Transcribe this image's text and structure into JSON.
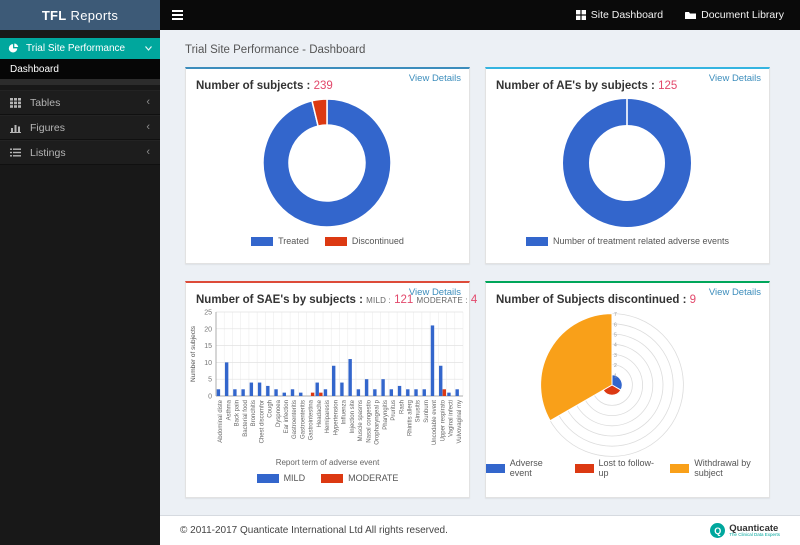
{
  "header": {
    "logo_bold": "TFL",
    "logo_rest": "Reports",
    "nav_items": [
      {
        "label": "Site Dashboard",
        "icon": "grid-icon"
      },
      {
        "label": "Document Library",
        "icon": "folder-icon"
      }
    ]
  },
  "sidebar": {
    "active": {
      "label": "Trial Site Performance",
      "icon": "pie-chart-icon"
    },
    "submenu": {
      "label": "Dashboard"
    },
    "items": [
      {
        "label": "Tables",
        "icon": "table-icon"
      },
      {
        "label": "Figures",
        "icon": "bar-chart-icon"
      },
      {
        "label": "Listings",
        "icon": "list-icon"
      }
    ]
  },
  "breadcrumb": "Trial Site Performance - Dashboard",
  "panels": [
    {
      "title": "Number of subjects :",
      "value": "239",
      "link": "View Details",
      "accent": "#3c8dbc"
    },
    {
      "title": "Number of AE's by subjects :",
      "value": "125",
      "link": "View Details",
      "accent": "#35b4e0"
    },
    {
      "title": "Number of SAE's by subjects :",
      "mild_label": "MILD :",
      "mild_value": "121",
      "moderate_label": "MODERATE :",
      "moderate_value": "4",
      "link": "View Details",
      "accent": "#dd4b39"
    },
    {
      "title": "Number of Subjects discontinued :",
      "value": "9",
      "link": "View Details",
      "accent": "#00a65a"
    }
  ],
  "footer": {
    "copyright": "© 2011-2017 Quanticate International Ltd All rights reserved.",
    "brand": "Quanticate",
    "brand_tagline": "The Clinical Data Experts"
  },
  "chart_data": [
    {
      "type": "pie",
      "subtype": "donut",
      "title": "Number of subjects",
      "total": 239,
      "labels": [
        "Treated",
        "Discontinued"
      ],
      "values": [
        230,
        9
      ],
      "colors": [
        "#3366cc",
        "#dc3912"
      ],
      "legend_position": "bottom"
    },
    {
      "type": "pie",
      "subtype": "donut",
      "title": "Number of AE's by subjects",
      "total": 125,
      "labels": [
        "Number of treatment related adverse events"
      ],
      "values": [
        125
      ],
      "colors": [
        "#3366cc"
      ],
      "legend_position": "bottom"
    },
    {
      "type": "bar",
      "title": "Number of SAE's by subjects",
      "xlabel": "Report term of adverse event",
      "ylabel": "Number of subjects",
      "ylim": [
        0,
        25
      ],
      "yticks": [
        0,
        5,
        10,
        15,
        20,
        25
      ],
      "grid": true,
      "legend_position": "bottom",
      "categories": [
        "Abdominal diste",
        "Asthma",
        "Back pain",
        "Bacterial food",
        "Bronchitis",
        "Chest discomfor",
        "Cough",
        "Dyspnoea",
        "Ear infection",
        "Gastroenteritis",
        "Gastroenteritis",
        "Gastrointestina",
        "Headache",
        "Hemiparesis",
        "Hypertension",
        "Influenza",
        "Injection site",
        "Muscle spasms",
        "Nasal congestio",
        "Oropharyngeal p",
        "Pharyngitis",
        "Pruritus",
        "Rash",
        "Rhinitis allerg",
        "Sinusitis",
        "Sunburn",
        "Uncodable event",
        "Upper respirato",
        "Vaginal infecti",
        "Vulvovaginal my"
      ],
      "series": [
        {
          "name": "MILD",
          "color": "#3366cc",
          "values": [
            2,
            10,
            2,
            2,
            4,
            4,
            3,
            2,
            1,
            2,
            1,
            0,
            4,
            2,
            9,
            4,
            11,
            2,
            5,
            2,
            5,
            2,
            3,
            2,
            2,
            2,
            21,
            9,
            1,
            2
          ]
        },
        {
          "name": "MODERATE",
          "color": "#dc3912",
          "values": [
            0,
            0,
            0,
            0,
            0,
            0,
            0,
            0,
            0,
            0,
            0,
            1,
            1,
            0,
            0,
            0,
            0,
            0,
            0,
            0,
            0,
            0,
            0,
            0,
            0,
            0,
            0,
            2,
            0,
            0
          ]
        }
      ]
    },
    {
      "type": "polar-area",
      "title": "Number of Subjects discontinued",
      "total": 9,
      "labels": [
        "Adverse event",
        "Lost to follow-up",
        "Withdrawal by subject"
      ],
      "values": [
        1,
        1,
        7
      ],
      "colors": [
        "#3366cc",
        "#dc3912",
        "#f9a019"
      ],
      "rings": 7,
      "tick_labels": [
        1,
        2,
        3,
        4,
        5,
        6,
        7
      ],
      "legend_position": "bottom"
    }
  ]
}
